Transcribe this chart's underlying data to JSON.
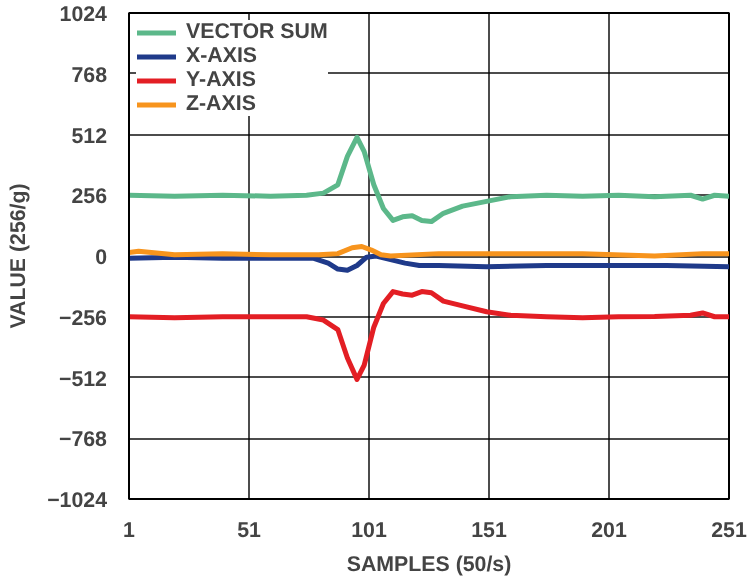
{
  "chart_data": {
    "type": "line",
    "xlabel": "SAMPLES (50/s)",
    "ylabel": "VALUE (256/g)",
    "xlim": [
      1,
      251
    ],
    "ylim": [
      -1024,
      1024
    ],
    "xticks": [
      1,
      51,
      101,
      151,
      201,
      251
    ],
    "yticks": [
      -1024,
      -768,
      -512,
      -256,
      0,
      256,
      512,
      768,
      1024
    ],
    "grid": true,
    "legend": "top left",
    "line_style": "solid",
    "series": [
      {
        "name": "VECTOR SUM",
        "color": "#5cb88a",
        "x": [
          1,
          20,
          40,
          60,
          75,
          82,
          88,
          92,
          96,
          99,
          103,
          107,
          111,
          115,
          119,
          123,
          127,
          132,
          140,
          150,
          160,
          175,
          190,
          205,
          220,
          235,
          240,
          245,
          251
        ],
        "values": [
          256,
          252,
          256,
          252,
          256,
          265,
          300,
          420,
          500,
          440,
          300,
          200,
          150,
          165,
          170,
          150,
          145,
          180,
          210,
          230,
          250,
          256,
          252,
          256,
          250,
          256,
          240,
          256,
          252
        ]
      },
      {
        "name": "X-AXIS",
        "color": "#1f3a8a",
        "x": [
          1,
          20,
          40,
          60,
          78,
          84,
          88,
          92,
          96,
          100,
          104,
          110,
          116,
          122,
          130,
          150,
          175,
          200,
          225,
          251
        ],
        "values": [
          -10,
          -5,
          -10,
          -10,
          -10,
          -30,
          -55,
          -60,
          -40,
          -5,
          0,
          -15,
          -30,
          -40,
          -40,
          -45,
          -40,
          -40,
          -40,
          -45
        ]
      },
      {
        "name": "Y-AXIS",
        "color": "#e31e24",
        "x": [
          1,
          20,
          40,
          60,
          75,
          82,
          88,
          92,
          96,
          99,
          103,
          107,
          111,
          115,
          119,
          123,
          127,
          132,
          140,
          150,
          160,
          175,
          190,
          205,
          220,
          235,
          240,
          245,
          251
        ],
        "values": [
          -256,
          -260,
          -256,
          -256,
          -256,
          -270,
          -310,
          -430,
          -520,
          -460,
          -300,
          -200,
          -150,
          -160,
          -165,
          -150,
          -155,
          -190,
          -210,
          -235,
          -250,
          -256,
          -260,
          -256,
          -255,
          -250,
          -240,
          -256,
          -256
        ]
      },
      {
        "name": "Z-AXIS",
        "color": "#f7941d",
        "x": [
          1,
          5,
          20,
          40,
          60,
          80,
          88,
          94,
          98,
          102,
          106,
          110,
          130,
          160,
          190,
          220,
          240,
          251
        ],
        "values": [
          15,
          20,
          5,
          10,
          5,
          5,
          10,
          35,
          40,
          25,
          5,
          0,
          10,
          10,
          10,
          0,
          10,
          10
        ]
      }
    ]
  }
}
